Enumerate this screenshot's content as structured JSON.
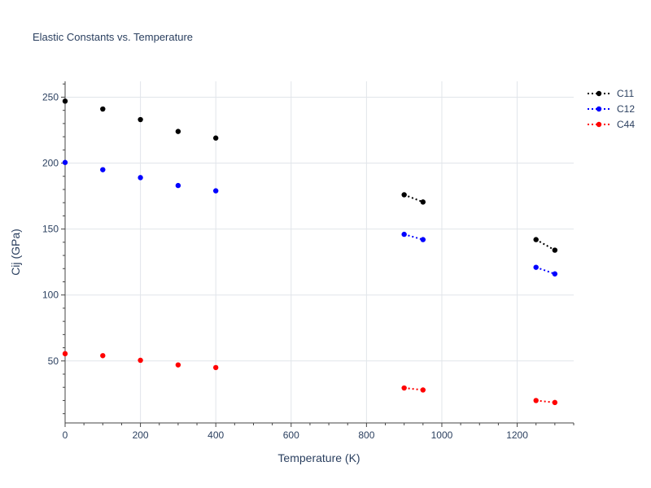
{
  "chart_data": {
    "type": "scatter",
    "title": "Elastic Constants vs. Temperature",
    "xlabel": "Temperature (K)",
    "ylabel": "Cij (GPa)",
    "xlim": [
      0,
      1350
    ],
    "ylim": [
      3,
      262
    ],
    "x_ticks": [
      0,
      200,
      400,
      600,
      800,
      1000,
      1200
    ],
    "y_ticks": [
      50,
      100,
      150,
      200,
      250
    ],
    "grid": true,
    "legend_position": "top-right",
    "series": [
      {
        "name": "C11",
        "color": "#000000",
        "segments": [
          {
            "mode": "markers",
            "x": [
              0,
              100,
              200,
              300,
              400
            ],
            "y": [
              247,
              241,
              233,
              224,
              219
            ]
          },
          {
            "mode": "lines+markers",
            "x": [
              900,
              950
            ],
            "y": [
              176,
              170.5
            ]
          },
          {
            "mode": "lines+markers",
            "x": [
              1250,
              1300
            ],
            "y": [
              142,
              134
            ]
          }
        ]
      },
      {
        "name": "C12",
        "color": "#0000ff",
        "segments": [
          {
            "mode": "markers",
            "x": [
              0,
              100,
              200,
              300,
              400
            ],
            "y": [
              200.5,
              195,
              189,
              183,
              179
            ]
          },
          {
            "mode": "lines+markers",
            "x": [
              900,
              950
            ],
            "y": [
              146,
              142
            ]
          },
          {
            "mode": "lines+markers",
            "x": [
              1250,
              1300
            ],
            "y": [
              121,
              116
            ]
          }
        ]
      },
      {
        "name": "C44",
        "color": "#ff0000",
        "segments": [
          {
            "mode": "markers",
            "x": [
              0,
              100,
              200,
              300,
              400
            ],
            "y": [
              55.5,
              54,
              50.5,
              47,
              45
            ]
          },
          {
            "mode": "lines+markers",
            "x": [
              900,
              950
            ],
            "y": [
              29.5,
              28
            ]
          },
          {
            "mode": "lines+markers",
            "x": [
              1250,
              1300
            ],
            "y": [
              20,
              18.5
            ]
          }
        ]
      }
    ]
  }
}
